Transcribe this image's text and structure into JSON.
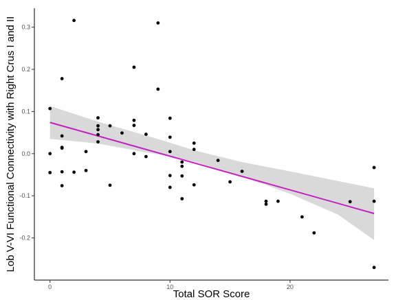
{
  "chart_data": {
    "type": "scatter",
    "xlabel": "Total SOR Score",
    "ylabel": "Lob V-VI Functional Connectivity with Right Crus I and II",
    "xlim": [
      -1.3,
      28.2
    ],
    "ylim": [
      -0.3,
      0.345
    ],
    "x_ticks": [
      0,
      10,
      20
    ],
    "y_ticks": [
      -0.2,
      -0.1,
      0.0,
      0.1,
      0.2,
      0.3
    ],
    "x_tick_labels": [
      "0",
      "10",
      "20"
    ],
    "y_tick_labels": [
      "-0.2",
      "-0.1",
      "0.0",
      "0.1",
      "0.2",
      "0.3"
    ],
    "grid": false,
    "points": [
      {
        "x": 0,
        "y": 0.107
      },
      {
        "x": 0,
        "y": 0.0
      },
      {
        "x": 0,
        "y": -0.045
      },
      {
        "x": 1,
        "y": 0.178
      },
      {
        "x": 1,
        "y": 0.042
      },
      {
        "x": 1,
        "y": 0.015
      },
      {
        "x": 1,
        "y": 0.013
      },
      {
        "x": 1,
        "y": -0.043
      },
      {
        "x": 1,
        "y": -0.076
      },
      {
        "x": 2,
        "y": 0.316
      },
      {
        "x": 2,
        "y": -0.044
      },
      {
        "x": 3,
        "y": 0.005
      },
      {
        "x": 3,
        "y": -0.04
      },
      {
        "x": 4,
        "y": 0.085
      },
      {
        "x": 4,
        "y": 0.066
      },
      {
        "x": 4,
        "y": 0.057
      },
      {
        "x": 4,
        "y": 0.045
      },
      {
        "x": 4,
        "y": 0.028
      },
      {
        "x": 5,
        "y": 0.066
      },
      {
        "x": 5,
        "y": -0.075
      },
      {
        "x": 6,
        "y": 0.049
      },
      {
        "x": 7,
        "y": 0.205
      },
      {
        "x": 7,
        "y": 0.079
      },
      {
        "x": 7,
        "y": 0.067
      },
      {
        "x": 7,
        "y": 0.0
      },
      {
        "x": 8,
        "y": 0.046
      },
      {
        "x": 8,
        "y": -0.007
      },
      {
        "x": 9,
        "y": 0.31
      },
      {
        "x": 9,
        "y": 0.153
      },
      {
        "x": 10,
        "y": 0.084
      },
      {
        "x": 10,
        "y": 0.039
      },
      {
        "x": 10,
        "y": 0.005
      },
      {
        "x": 10,
        "y": -0.052
      },
      {
        "x": 10,
        "y": -0.08
      },
      {
        "x": 11,
        "y": -0.02
      },
      {
        "x": 11,
        "y": -0.03
      },
      {
        "x": 11,
        "y": -0.053
      },
      {
        "x": 11,
        "y": -0.107
      },
      {
        "x": 12,
        "y": 0.025
      },
      {
        "x": 12,
        "y": 0.01
      },
      {
        "x": 12,
        "y": -0.074
      },
      {
        "x": 14,
        "y": -0.016
      },
      {
        "x": 15,
        "y": -0.067
      },
      {
        "x": 16,
        "y": -0.042
      },
      {
        "x": 18,
        "y": -0.113
      },
      {
        "x": 18,
        "y": -0.12
      },
      {
        "x": 19,
        "y": -0.113
      },
      {
        "x": 21,
        "y": -0.15
      },
      {
        "x": 22,
        "y": -0.188
      },
      {
        "x": 25,
        "y": -0.114
      },
      {
        "x": 27,
        "y": -0.033
      },
      {
        "x": 27,
        "y": -0.113
      },
      {
        "x": 27,
        "y": -0.27
      }
    ],
    "trend_line": {
      "x": [
        0,
        27
      ],
      "y": [
        0.074,
        -0.142
      ],
      "color": "#c41ec4"
    },
    "confidence_band": {
      "x": [
        0,
        4,
        8,
        10,
        12,
        16,
        20,
        24,
        27
      ],
      "upper": [
        0.113,
        0.076,
        0.043,
        0.026,
        0.008,
        -0.02,
        -0.042,
        -0.065,
        -0.082
      ],
      "lower": [
        0.035,
        0.024,
        0.003,
        -0.006,
        -0.019,
        -0.054,
        -0.095,
        -0.145,
        -0.205
      ],
      "color": "#d9d9d9"
    },
    "point_color": "#000000"
  }
}
